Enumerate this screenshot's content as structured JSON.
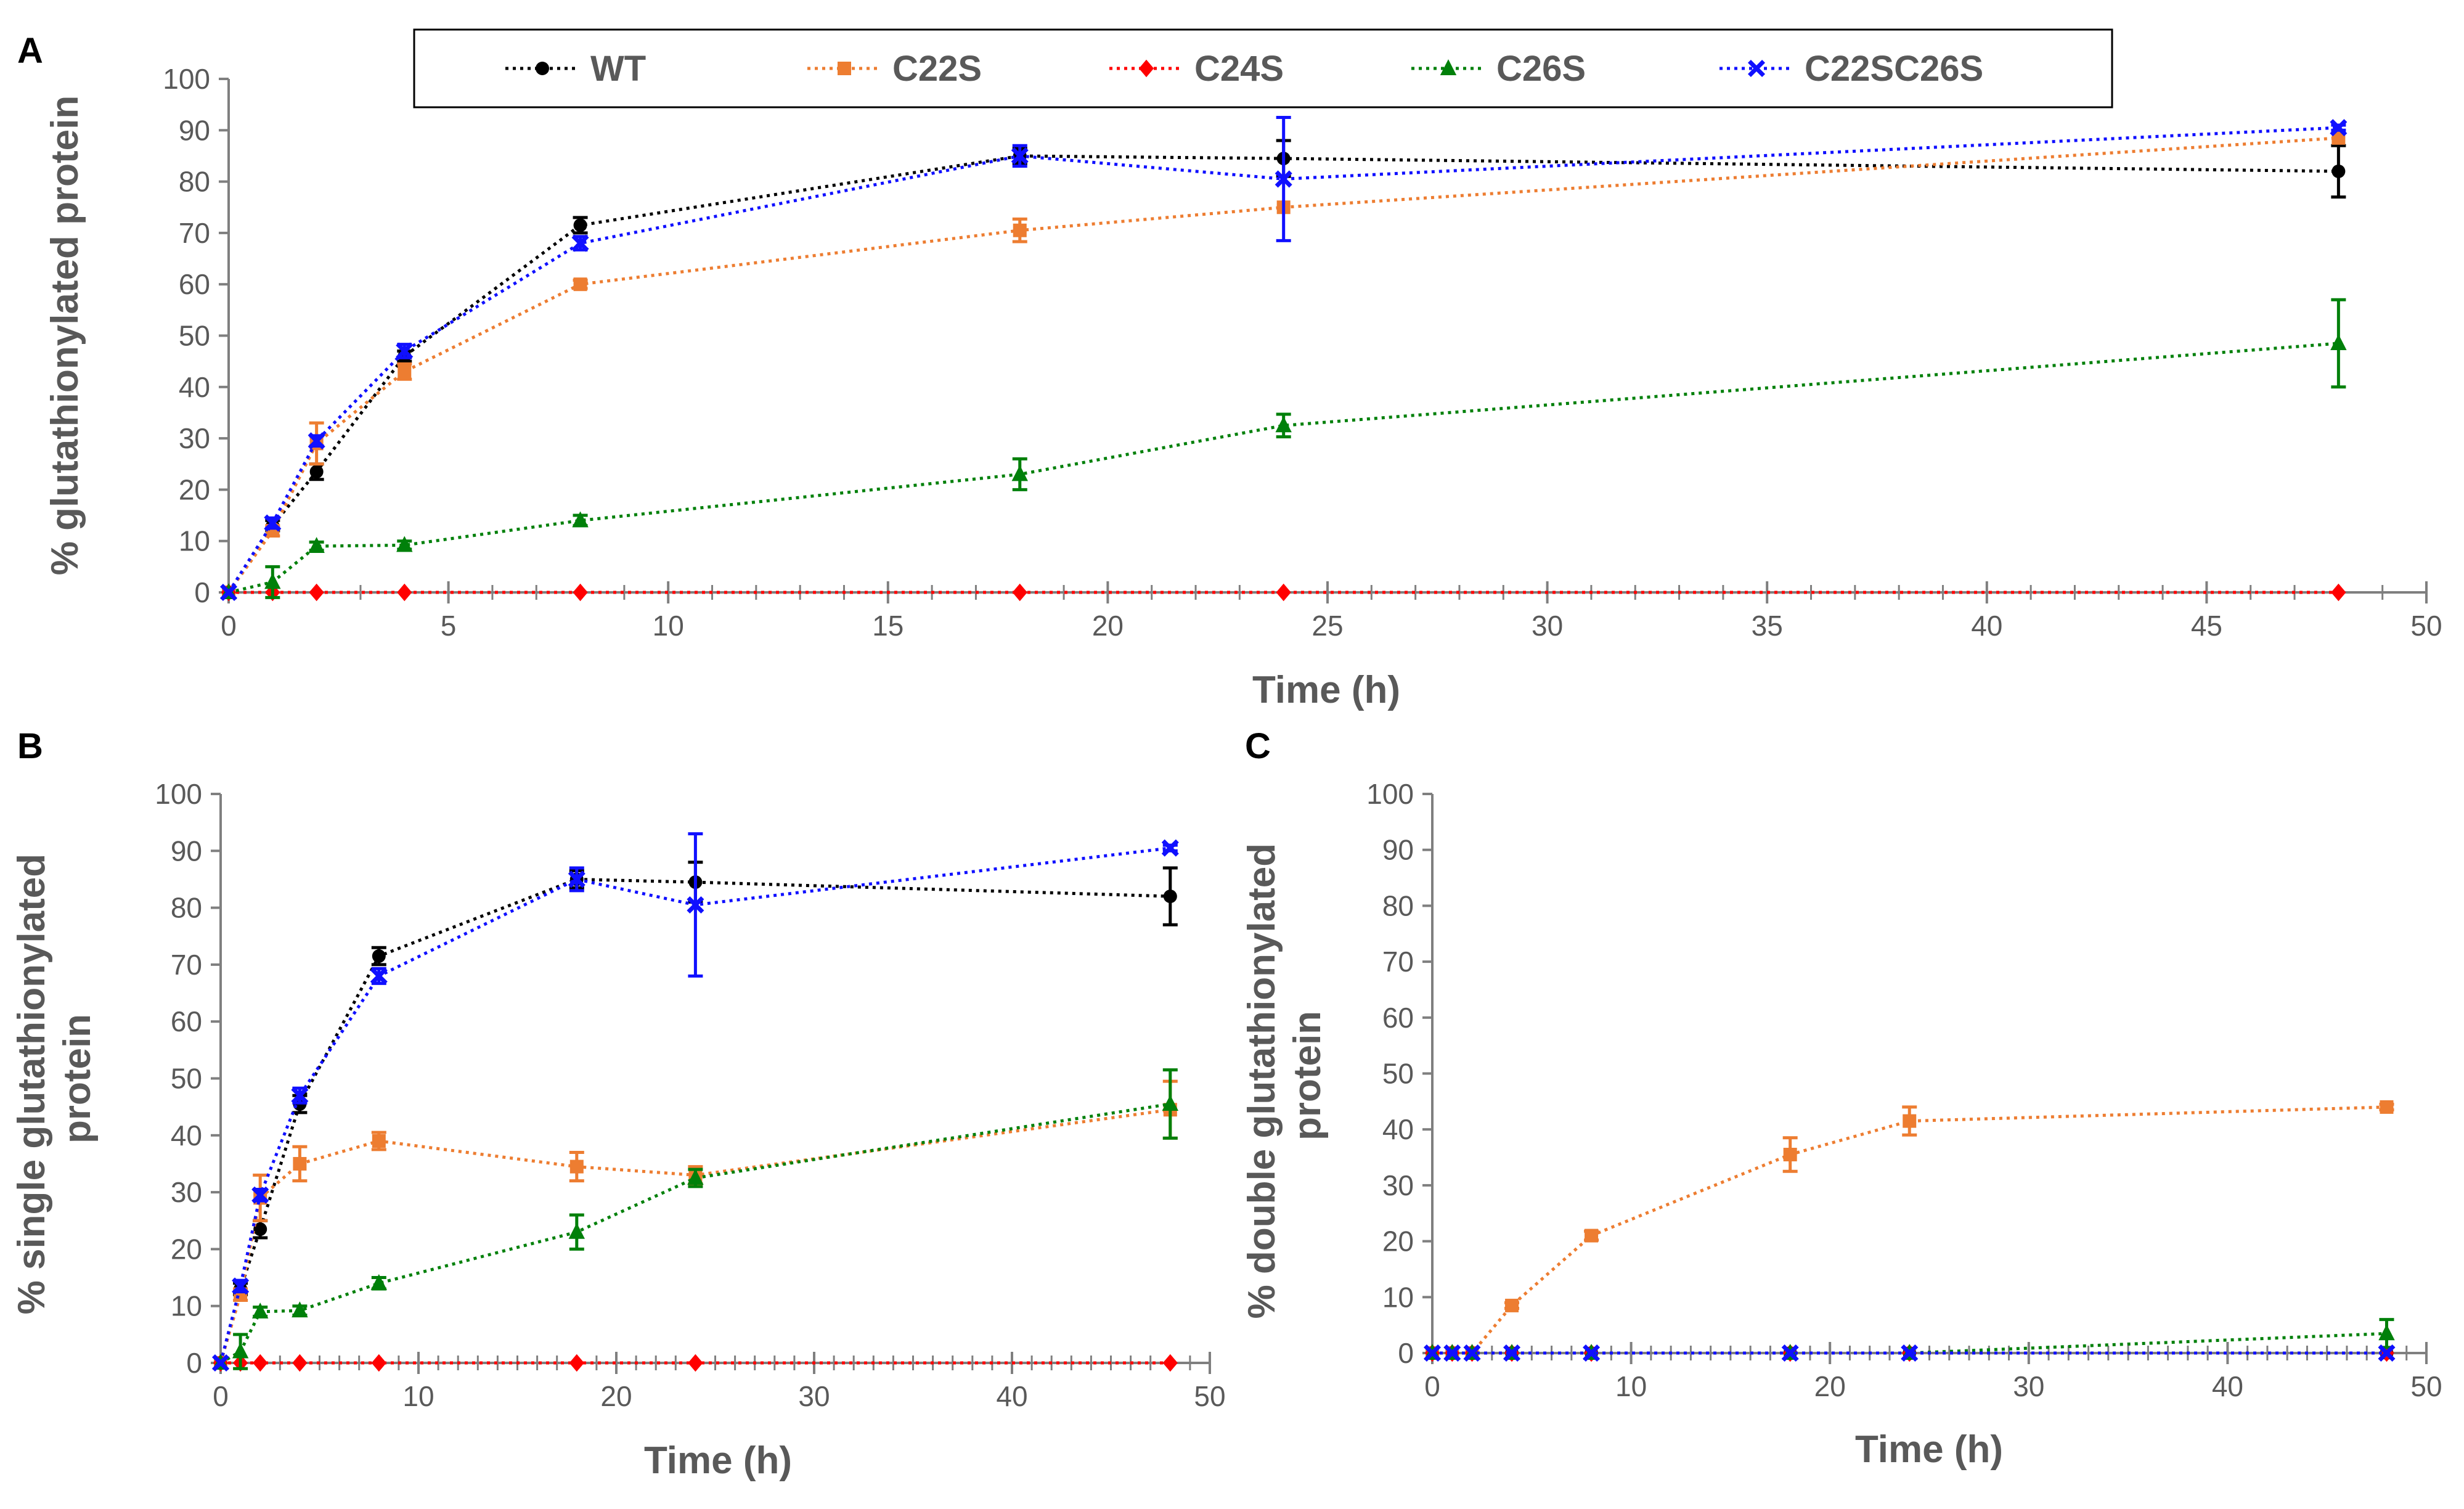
{
  "colors": {
    "WT": "#000000",
    "C22S": "#ED7D31",
    "C24S": "#FF0000",
    "C26S": "#00800A",
    "C22SC26S": "#1010FF",
    "axis": "#7F7F7F",
    "text": "#595959"
  },
  "legend": {
    "entries": [
      {
        "name": "WT",
        "marker": "circle"
      },
      {
        "name": "C22S",
        "marker": "square"
      },
      {
        "name": "C24S",
        "marker": "diamond"
      },
      {
        "name": "C26S",
        "marker": "triangle"
      },
      {
        "name": "C22SC26S",
        "marker": "x"
      }
    ]
  },
  "chart_data": [
    {
      "panel": "A",
      "type": "line",
      "xlabel": "Time (h)",
      "ylabel": "% glutathionylated protein",
      "xlim": [
        0,
        50
      ],
      "ylim": [
        0,
        100
      ],
      "xticks": [
        0,
        5,
        10,
        15,
        20,
        25,
        30,
        35,
        40,
        45,
        50
      ],
      "yticks": [
        0,
        10,
        20,
        30,
        40,
        50,
        60,
        70,
        80,
        90,
        100
      ],
      "x": [
        0,
        1,
        2,
        4,
        8,
        18,
        24,
        48
      ],
      "series": [
        {
          "name": "WT",
          "values": [
            0,
            13,
            23.5,
            46,
            71.5,
            85,
            84.5,
            82
          ],
          "err": [
            0,
            1,
            1.5,
            1,
            1.5,
            1.5,
            3.5,
            5
          ]
        },
        {
          "name": "C22S",
          "values": [
            0,
            12,
            29,
            43,
            60,
            70.5,
            75,
            88.5
          ],
          "err": [
            0,
            1,
            4,
            1.5,
            0.8,
            2.2,
            0,
            0
          ]
        },
        {
          "name": "C24S",
          "values": [
            0,
            0,
            0,
            0,
            0,
            0,
            0,
            0
          ],
          "err": [
            0,
            0,
            0,
            0,
            0,
            0,
            0,
            0
          ]
        },
        {
          "name": "C26S",
          "values": [
            0,
            2,
            9,
            9.2,
            14,
            23,
            32.5,
            48.5
          ],
          "err": [
            0,
            3,
            0.8,
            0.8,
            1,
            3,
            2.2,
            8.5
          ]
        },
        {
          "name": "C22SC26S",
          "values": [
            0,
            13.5,
            29.5,
            47,
            68,
            85,
            80.5,
            90.5
          ],
          "err": [
            0,
            1,
            1,
            1.3,
            1.3,
            2,
            12,
            0.5
          ]
        }
      ]
    },
    {
      "panel": "B",
      "type": "line",
      "xlabel": "Time (h)",
      "ylabel": "% single glutathionylated protein",
      "xlim": [
        0,
        50
      ],
      "ylim": [
        0,
        100
      ],
      "xticks": [
        0,
        10,
        20,
        30,
        40,
        50
      ],
      "yticks": [
        0,
        10,
        20,
        30,
        40,
        50,
        60,
        70,
        80,
        90,
        100
      ],
      "x": [
        0,
        1,
        2,
        4,
        8,
        18,
        24,
        48
      ],
      "series": [
        {
          "name": "WT",
          "values": [
            0,
            13,
            23.5,
            45.5,
            71.5,
            85,
            84.5,
            82
          ],
          "err": [
            0,
            1,
            1.5,
            1.5,
            1.5,
            1.5,
            3.5,
            5
          ]
        },
        {
          "name": "C22S",
          "values": [
            0,
            12,
            29,
            35,
            39,
            34.5,
            33,
            44.5
          ],
          "err": [
            0,
            1,
            4,
            3,
            1.5,
            2.5,
            1.5,
            5
          ]
        },
        {
          "name": "C24S",
          "values": [
            0,
            0,
            0,
            0,
            0,
            0,
            0,
            0
          ],
          "err": [
            0,
            0,
            0,
            0,
            0,
            0,
            0,
            0
          ]
        },
        {
          "name": "C26S",
          "values": [
            0,
            2,
            9,
            9.2,
            14,
            23,
            32.5,
            45.5
          ],
          "err": [
            0,
            3,
            0.8,
            0.8,
            1,
            3,
            1.5,
            6
          ]
        },
        {
          "name": "C22SC26S",
          "values": [
            0,
            13.5,
            29.5,
            47,
            68,
            85,
            80.5,
            90.5
          ],
          "err": [
            0,
            1,
            1,
            1.3,
            1.3,
            2,
            12.5,
            0.5
          ]
        }
      ]
    },
    {
      "panel": "C",
      "type": "line",
      "xlabel": "Time (h)",
      "ylabel": "% double glutathionylated protein",
      "xlim": [
        0,
        50
      ],
      "ylim": [
        0,
        100
      ],
      "xticks": [
        0,
        10,
        20,
        30,
        40,
        50
      ],
      "yticks": [
        0,
        10,
        20,
        30,
        40,
        50,
        60,
        70,
        80,
        90,
        100
      ],
      "x": [
        0,
        1,
        2,
        4,
        8,
        18,
        24,
        48
      ],
      "series": [
        {
          "name": "WT",
          "values": [
            0,
            0,
            0,
            0,
            0,
            0,
            0,
            0
          ],
          "err": [
            0,
            0,
            0,
            0,
            0,
            0,
            0,
            0
          ]
        },
        {
          "name": "C22S",
          "values": [
            0,
            0,
            0,
            8.5,
            21,
            35.5,
            41.5,
            44
          ],
          "err": [
            0,
            0,
            0,
            0.5,
            0.8,
            3,
            2.5,
            0.5
          ]
        },
        {
          "name": "C24S",
          "values": [
            0,
            0,
            0,
            0,
            0,
            0,
            0,
            0
          ],
          "err": [
            0,
            0,
            0,
            0,
            0,
            0,
            0,
            0
          ]
        },
        {
          "name": "C26S",
          "values": [
            0,
            0,
            0,
            0,
            0,
            0,
            0,
            3.5
          ],
          "err": [
            0,
            0,
            0,
            0,
            0,
            0,
            0,
            2.5
          ]
        },
        {
          "name": "C22SC26S",
          "values": [
            0,
            0,
            0,
            0,
            0,
            0,
            0,
            0
          ],
          "err": [
            0,
            0,
            0,
            0,
            0,
            0,
            0,
            0
          ]
        }
      ]
    }
  ]
}
